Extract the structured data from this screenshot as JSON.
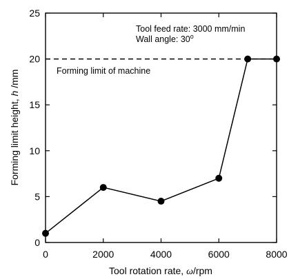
{
  "chart_data": {
    "type": "line",
    "title": "",
    "xlabel": {
      "main": "Tool rotation rate, ",
      "symbol": "ω",
      "unit": "/rpm"
    },
    "ylabel": {
      "main": "Forming limit height, ",
      "symbol": "h",
      "unit": " /mm"
    },
    "xlim": [
      0,
      8000
    ],
    "ylim": [
      0,
      25
    ],
    "xticks": [
      0,
      2000,
      4000,
      6000,
      8000
    ],
    "yticks": [
      0,
      5,
      10,
      15,
      20,
      25
    ],
    "grid": false,
    "legend": "none",
    "series": [
      {
        "x": [
          0,
          2000,
          4000,
          6000,
          7000,
          8000
        ],
        "y": [
          1,
          6,
          4.5,
          7,
          20,
          20
        ],
        "color": "#000000",
        "marker": "circle"
      }
    ],
    "reference_line": {
      "y": 20,
      "style": "dashed",
      "label": "Forming limit of machine"
    },
    "annotations": {
      "feed_rate": "Tool feed rate: 3000 mm/min",
      "wall_angle": "Wall angle: 30",
      "wall_angle_unit": "o"
    }
  }
}
